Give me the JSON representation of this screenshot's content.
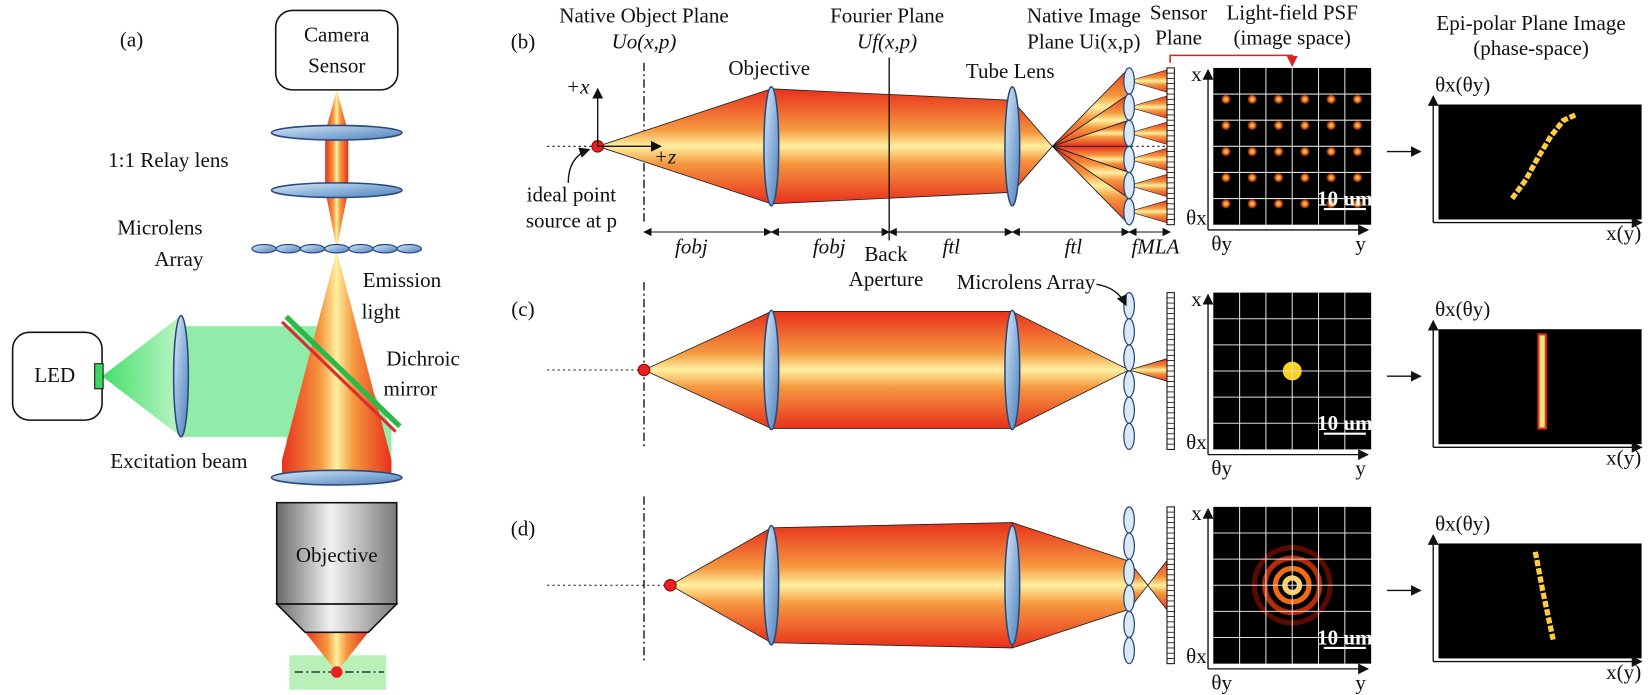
{
  "panel_a": {
    "label": "(a)",
    "camera_sensor": [
      "Camera",
      "Sensor"
    ],
    "relay_lens": "1:1 Relay lens",
    "microlens_array": [
      "Microlens",
      "Array"
    ],
    "emission_light": [
      "Emission",
      "light"
    ],
    "dichroic_mirror": [
      "Dichroic",
      "mirror"
    ],
    "led": "LED",
    "excitation_beam": "Excitation beam",
    "objective": "Objective"
  },
  "header": {
    "native_object_plane": [
      "Native Object Plane",
      "Uo(x,p)"
    ],
    "fourier_plane": [
      "Fourier Plane",
      "Uf(x,p)"
    ],
    "native_image_plane": [
      "Native Image",
      "Plane Ui(x,p)"
    ],
    "sensor_plane": [
      "Sensor",
      "Plane"
    ],
    "light_field_psf": [
      "Light-field PSF",
      "(image space)"
    ],
    "epi_polar": [
      "Epi-polar Plane Image",
      "(phase-space)"
    ]
  },
  "panel_b_labels": {
    "objective": "Objective",
    "tube_lens": "Tube Lens",
    "plus_x": "+x",
    "plus_z": "+z",
    "point_source": [
      "ideal point",
      "source at p"
    ],
    "f_obj_1": "fobj",
    "f_obj_2": "fobj",
    "back_aperture": [
      "Back",
      "Aperture"
    ],
    "f_tl_1": "ftl",
    "f_tl_2": "ftl",
    "f_mla": "fMLA",
    "microlens_array": "Microlens Array"
  },
  "rows": [
    {
      "label": "(b)",
      "psf": {
        "x": "x",
        "theta_x": "θx",
        "theta_y": "θy",
        "y": "y",
        "scale": "10 um"
      },
      "epi": {
        "y_label": "θx(θy)",
        "x_label": "x(y)"
      }
    },
    {
      "label": "(c)",
      "psf": {
        "x": "x",
        "theta_x": "θx",
        "theta_y": "θy",
        "y": "y",
        "scale": "10 um"
      },
      "epi": {
        "y_label": "θx(θy)",
        "x_label": "x(y)"
      }
    },
    {
      "label": "(d)",
      "psf": {
        "x": "x",
        "theta_x": "θx",
        "theta_y": "θy",
        "y": "y",
        "scale": "10 um"
      },
      "epi": {
        "y_label": "θx(θy)",
        "x_label": "x(y)"
      }
    }
  ]
}
